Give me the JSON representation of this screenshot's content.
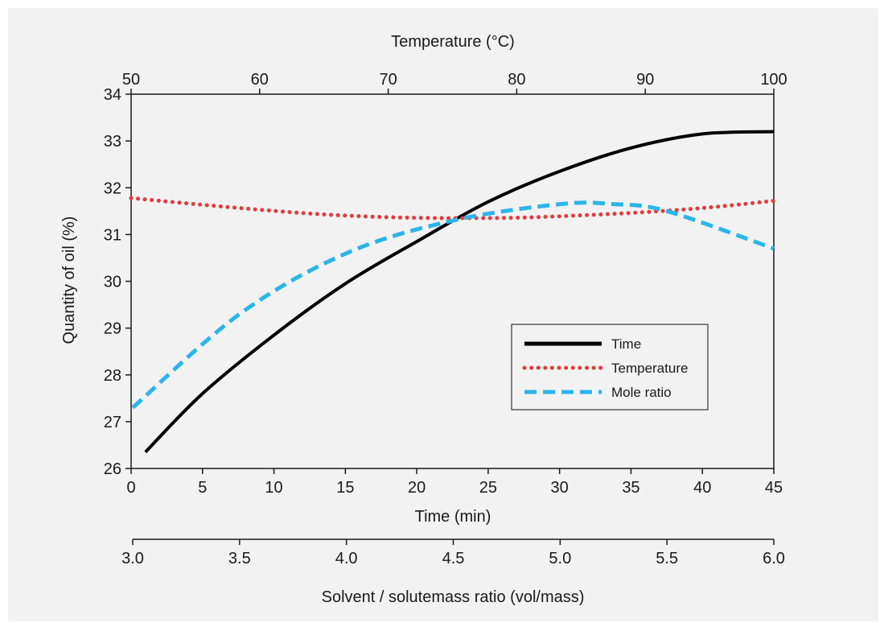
{
  "chart_data": {
    "type": "line",
    "title": "",
    "ylabel": "Quantity of oil (%)",
    "ylim": [
      26,
      34
    ],
    "yticks": [
      "26",
      "27",
      "28",
      "29",
      "30",
      "31",
      "32",
      "33",
      "34"
    ],
    "axes": {
      "time": {
        "label": "Time (min)",
        "range": [
          0,
          45
        ],
        "ticks": [
          "0",
          "5",
          "10",
          "15",
          "20",
          "25",
          "30",
          "35",
          "40",
          "45"
        ],
        "position": "bottom"
      },
      "ratio": {
        "label": "Solvent / solutemass ratio (vol/mass)",
        "range": [
          3.0,
          6.0
        ],
        "ticks": [
          "3.0",
          "3.5",
          "4.0",
          "4.5",
          "5.0",
          "5.5",
          "6.0"
        ],
        "position": "bottom-secondary"
      },
      "temperature": {
        "label": "Temperature (°C)",
        "range": [
          50,
          100
        ],
        "ticks": [
          "50",
          "60",
          "70",
          "80",
          "90",
          "100"
        ],
        "position": "top"
      }
    },
    "series": [
      {
        "name": "Time",
        "axis": "time",
        "style": "solid",
        "color": "#000000",
        "x": [
          1,
          5,
          10,
          15,
          20,
          25,
          30,
          35,
          40,
          45
        ],
        "y": [
          26.35,
          27.6,
          28.85,
          29.95,
          30.85,
          31.7,
          32.35,
          32.85,
          33.15,
          33.2
        ]
      },
      {
        "name": "Temperature",
        "axis": "temperature",
        "style": "dotted",
        "color": "#e03c3c",
        "x": [
          50,
          55,
          60,
          65,
          70,
          75,
          80,
          85,
          90,
          95,
          100
        ],
        "y": [
          31.78,
          31.65,
          31.53,
          31.43,
          31.37,
          31.35,
          31.36,
          31.41,
          31.48,
          31.58,
          31.72
        ]
      },
      {
        "name": "Mole ratio",
        "axis": "ratio",
        "style": "dashed",
        "color": "#2bb5ea",
        "x": [
          3.0,
          3.5,
          4.0,
          4.5,
          5.0,
          5.25,
          5.5,
          6.0
        ],
        "y": [
          27.3,
          29.3,
          30.6,
          31.3,
          31.65,
          31.65,
          31.5,
          30.7
        ]
      }
    ],
    "legend": {
      "position": "center-right",
      "items": [
        "Time",
        "Temperature",
        "Mole ratio"
      ]
    },
    "grid": false
  }
}
